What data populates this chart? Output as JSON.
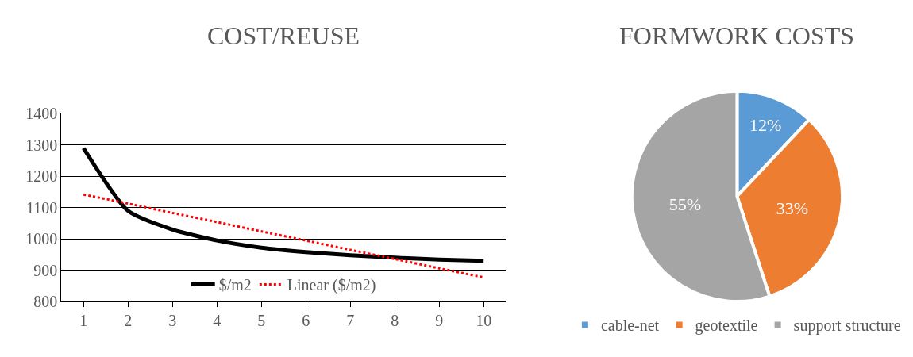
{
  "chart_data": [
    {
      "type": "line",
      "title": "COST/REUSE",
      "categories": [
        "1",
        "2",
        "3",
        "4",
        "5",
        "6",
        "7",
        "8",
        "9",
        "10"
      ],
      "series": [
        {
          "name": "$/m2",
          "color": "#000000",
          "line_style": "solid",
          "values": [
            1290,
            1090,
            1030,
            995,
            972,
            958,
            948,
            940,
            934,
            930
          ]
        },
        {
          "name": "Linear ($/m2)",
          "color": "#ff0000",
          "line_style": "dotted",
          "values": [
            1142,
            1113,
            1083,
            1054,
            1024,
            995,
            965,
            936,
            906,
            877
          ]
        }
      ],
      "ylim": [
        800,
        1400
      ],
      "yticks": [
        800,
        900,
        1000,
        1100,
        1200,
        1300,
        1400
      ],
      "grid": "y",
      "legend": "bottom",
      "marker": "none"
    },
    {
      "type": "pie",
      "title": "FORMWORK COSTS",
      "categories": [
        "cable-net",
        "geotextile",
        "support structure"
      ],
      "values": [
        12,
        33,
        55
      ],
      "colors": [
        "#5b9bd5",
        "#ed7d31",
        "#a5a5a5"
      ],
      "value_labels": [
        "12%",
        "33%",
        "55%"
      ],
      "legend": "bottom"
    }
  ]
}
